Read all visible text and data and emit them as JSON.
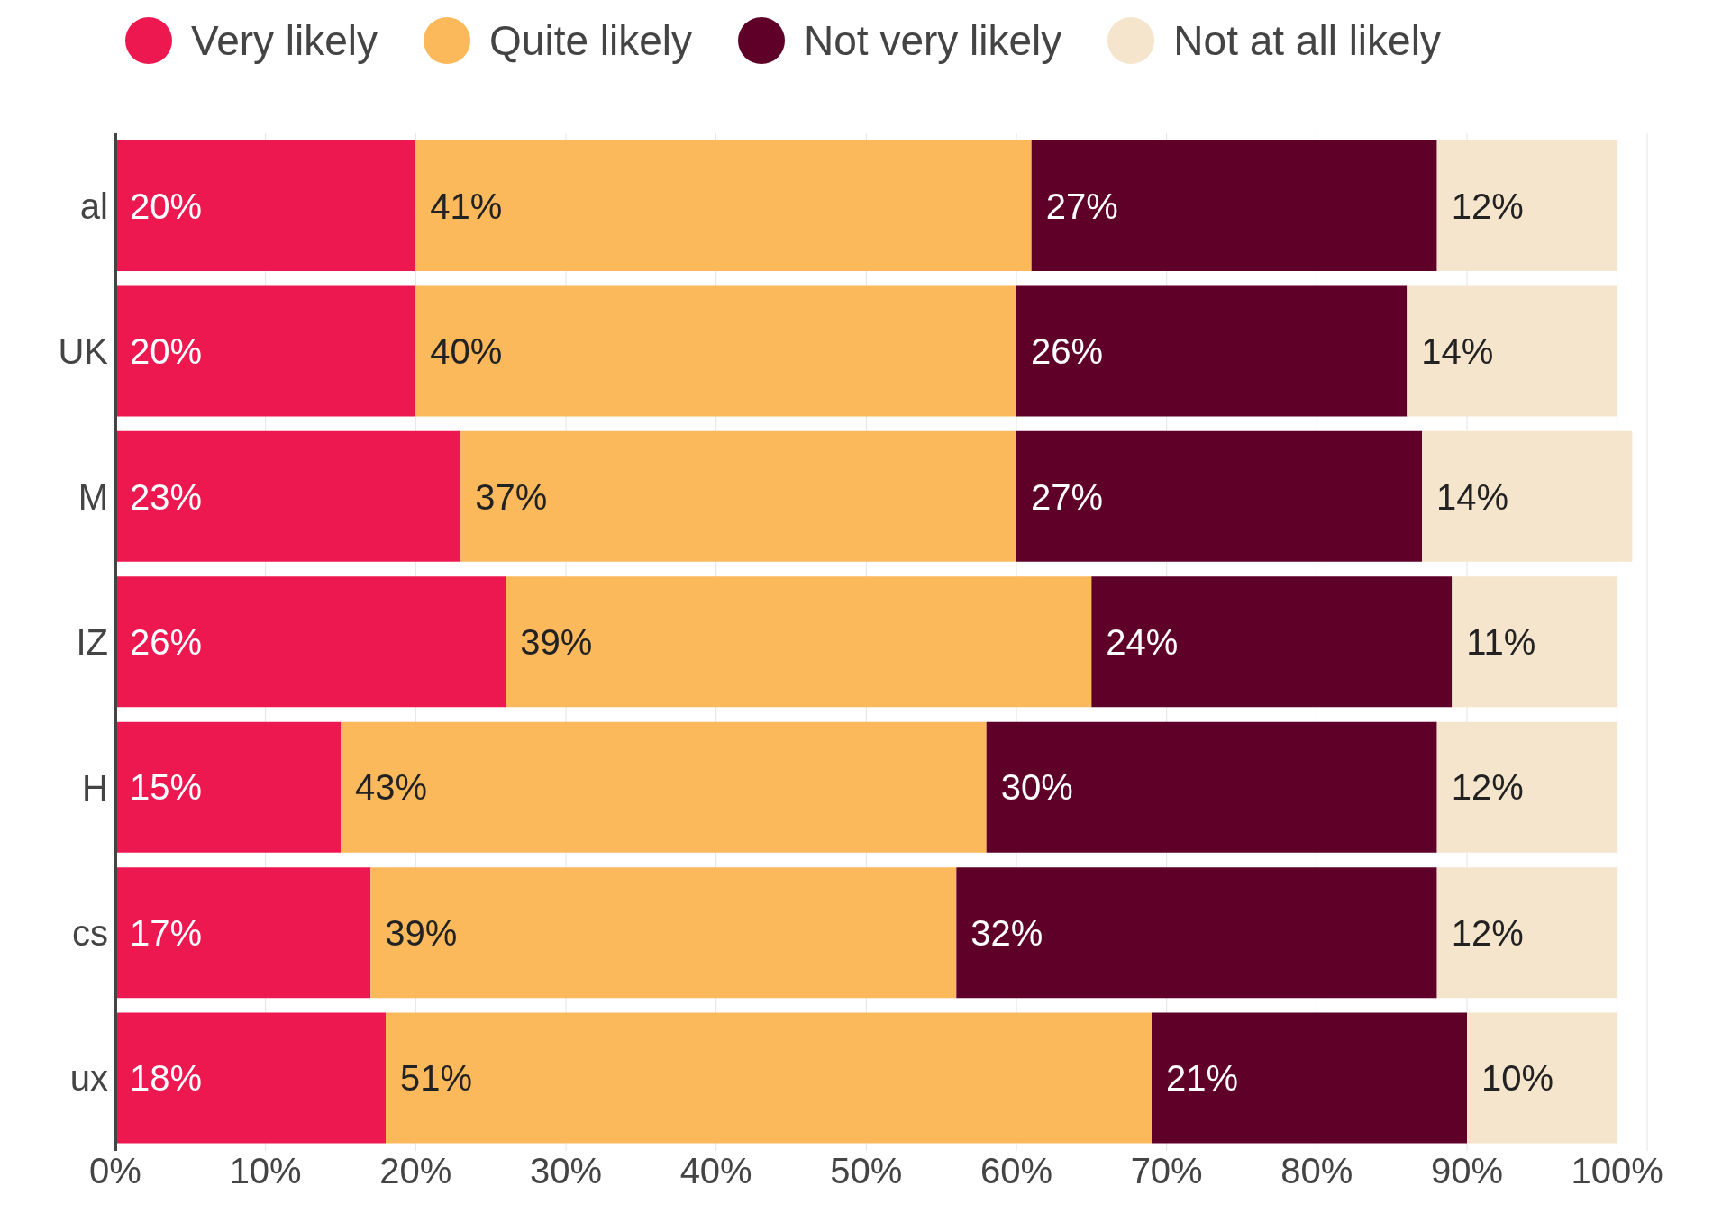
{
  "chart_data": {
    "type": "bar",
    "orientation": "horizontal",
    "stacked": true,
    "categories": [
      "al",
      "UK",
      "M",
      "IZ",
      "H",
      "cs",
      "ux"
    ],
    "series": [
      {
        "name": "Very likely",
        "color": "#ee1850",
        "values": [
          20,
          20,
          23,
          26,
          15,
          17,
          18
        ],
        "value_labels": [
          "20%",
          "20%",
          "23%",
          "26%",
          "15%",
          "17%",
          "18%"
        ]
      },
      {
        "name": "Quite likely",
        "color": "#fbb95c",
        "values": [
          41,
          40,
          37,
          39,
          43,
          39,
          51
        ],
        "value_labels": [
          "41%",
          "40%",
          "37%",
          "39%",
          "43%",
          "39%",
          "51%"
        ]
      },
      {
        "name": "Not very likely",
        "color": "#5e0028",
        "values": [
          27,
          26,
          27,
          24,
          30,
          32,
          21
        ],
        "value_labels": [
          "27%",
          "26%",
          "27%",
          "24%",
          "30%",
          "32%",
          "21%"
        ]
      },
      {
        "name": "Not at all likely",
        "color": "#f5e5cc",
        "values": [
          12,
          14,
          14,
          11,
          12,
          12,
          10
        ],
        "value_labels": [
          "12%",
          "14%",
          "14%",
          "11%",
          "12%",
          "12%",
          "10%"
        ]
      }
    ],
    "xlim": [
      0,
      102
    ],
    "xticks": [
      {
        "value": 0,
        "label": "0%"
      },
      {
        "value": 10,
        "label": "10%"
      },
      {
        "value": 20,
        "label": "20%"
      },
      {
        "value": 30,
        "label": "30%"
      },
      {
        "value": 40,
        "label": "40%"
      },
      {
        "value": 50,
        "label": "50%"
      },
      {
        "value": 60,
        "label": "60%"
      },
      {
        "value": 70,
        "label": "70%"
      },
      {
        "value": 80,
        "label": "80%"
      },
      {
        "value": 90,
        "label": "90%"
      },
      {
        "value": 100,
        "label": "100%"
      }
    ],
    "grid": "x",
    "legend": "top"
  }
}
